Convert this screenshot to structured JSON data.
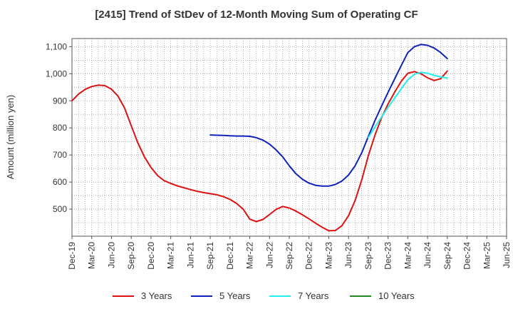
{
  "chart_data": {
    "type": "line",
    "title": "[2415]  Trend of StDev of 12-Month Moving Sum of Operating CF",
    "ylabel": "Amount (million yen)",
    "xlabel": "",
    "y_ticks": [
      500,
      600,
      700,
      800,
      900,
      1000,
      1100
    ],
    "y_tick_labels": [
      "500",
      "600",
      "700",
      "800",
      "900",
      "1,000",
      "1,100"
    ],
    "ylim": [
      400,
      1130
    ],
    "x_tick_labels": [
      "Dec-19",
      "Mar-20",
      "Jun-20",
      "Sep-20",
      "Dec-20",
      "Mar-21",
      "Jun-21",
      "Sep-21",
      "Dec-21",
      "Mar-22",
      "Jun-22",
      "Sep-22",
      "Dec-22",
      "Mar-23",
      "Jun-23",
      "Sep-23",
      "Dec-23",
      "Mar-24",
      "Jun-24",
      "Sep-24",
      "Dec-24",
      "Mar-25",
      "Jun-25"
    ],
    "grid": true,
    "legend_position": "bottom",
    "series": [
      {
        "name": "3 Years",
        "color": "#dd1111",
        "points": [
          [
            "Dec-19",
            900
          ],
          [
            "Jan-20",
            925
          ],
          [
            "Feb-20",
            942
          ],
          [
            "Mar-20",
            953
          ],
          [
            "Apr-20",
            958
          ],
          [
            "May-20",
            956
          ],
          [
            "Jun-20",
            943
          ],
          [
            "Jul-20",
            917
          ],
          [
            "Aug-20",
            873
          ],
          [
            "Sep-20",
            808
          ],
          [
            "Oct-20",
            745
          ],
          [
            "Nov-20",
            693
          ],
          [
            "Dec-20",
            654
          ],
          [
            "Jan-21",
            624
          ],
          [
            "Feb-21",
            605
          ],
          [
            "Mar-21",
            595
          ],
          [
            "Apr-21",
            586
          ],
          [
            "May-21",
            579
          ],
          [
            "Jun-21",
            572
          ],
          [
            "Jul-21",
            566
          ],
          [
            "Aug-21",
            561
          ],
          [
            "Sep-21",
            557
          ],
          [
            "Oct-21",
            553
          ],
          [
            "Nov-21",
            546
          ],
          [
            "Dec-21",
            536
          ],
          [
            "Jan-22",
            521
          ],
          [
            "Feb-22",
            500
          ],
          [
            "Mar-22",
            463
          ],
          [
            "Apr-22",
            454
          ],
          [
            "May-22",
            462
          ],
          [
            "Jun-22",
            480
          ],
          [
            "Jul-22",
            499
          ],
          [
            "Aug-22",
            510
          ],
          [
            "Sep-22",
            504
          ],
          [
            "Oct-22",
            493
          ],
          [
            "Nov-22",
            479
          ],
          [
            "Dec-22",
            464
          ],
          [
            "Jan-23",
            448
          ],
          [
            "Feb-23",
            433
          ],
          [
            "Mar-23",
            420
          ],
          [
            "Apr-23",
            421
          ],
          [
            "May-23",
            439
          ],
          [
            "Jun-23",
            476
          ],
          [
            "Jul-23",
            532
          ],
          [
            "Aug-23",
            608
          ],
          [
            "Sep-23",
            697
          ],
          [
            "Oct-23",
            773
          ],
          [
            "Nov-23",
            837
          ],
          [
            "Dec-23",
            888
          ],
          [
            "Jan-24",
            932
          ],
          [
            "Feb-24",
            972
          ],
          [
            "Mar-24",
            1002
          ],
          [
            "Apr-24",
            1008
          ],
          [
            "May-24",
            1000
          ],
          [
            "Jun-24",
            985
          ],
          [
            "Jul-24",
            975
          ],
          [
            "Aug-24",
            982
          ],
          [
            "Sep-24",
            1010
          ]
        ]
      },
      {
        "name": "5 Years",
        "color": "#1122bb",
        "points": [
          [
            "Sep-21",
            774
          ],
          [
            "Oct-21",
            773
          ],
          [
            "Nov-21",
            772
          ],
          [
            "Dec-21",
            771
          ],
          [
            "Jan-22",
            770
          ],
          [
            "Feb-22",
            770
          ],
          [
            "Mar-22",
            769
          ],
          [
            "Apr-22",
            764
          ],
          [
            "May-22",
            755
          ],
          [
            "Jun-22",
            740
          ],
          [
            "Jul-22",
            719
          ],
          [
            "Aug-22",
            693
          ],
          [
            "Sep-22",
            660
          ],
          [
            "Oct-22",
            631
          ],
          [
            "Nov-22",
            610
          ],
          [
            "Dec-22",
            596
          ],
          [
            "Jan-23",
            588
          ],
          [
            "Feb-23",
            585
          ],
          [
            "Mar-23",
            585
          ],
          [
            "Apr-23",
            591
          ],
          [
            "May-23",
            604
          ],
          [
            "Jun-23",
            626
          ],
          [
            "Jul-23",
            660
          ],
          [
            "Aug-23",
            708
          ],
          [
            "Sep-23",
            768
          ],
          [
            "Oct-23",
            827
          ],
          [
            "Nov-23",
            880
          ],
          [
            "Dec-23",
            931
          ],
          [
            "Jan-24",
            981
          ],
          [
            "Feb-24",
            1030
          ],
          [
            "Mar-24",
            1078
          ],
          [
            "Apr-24",
            1100
          ],
          [
            "May-24",
            1108
          ],
          [
            "Jun-24",
            1105
          ],
          [
            "Jul-24",
            1095
          ],
          [
            "Aug-24",
            1078
          ],
          [
            "Sep-24",
            1056
          ]
        ]
      },
      {
        "name": "7 Years",
        "color": "#22eeee",
        "points": [
          [
            "Sep-23",
            764
          ],
          [
            "Oct-23",
            803
          ],
          [
            "Nov-23",
            840
          ],
          [
            "Dec-23",
            876
          ],
          [
            "Jan-24",
            910
          ],
          [
            "Feb-24",
            944
          ],
          [
            "Mar-24",
            978
          ],
          [
            "Apr-24",
            998
          ],
          [
            "May-24",
            1005
          ],
          [
            "Jun-24",
            1002
          ],
          [
            "Jul-24",
            994
          ],
          [
            "Aug-24",
            988
          ],
          [
            "Sep-24",
            984
          ]
        ]
      },
      {
        "name": "10 Years",
        "color": "#228822",
        "points": []
      }
    ]
  }
}
